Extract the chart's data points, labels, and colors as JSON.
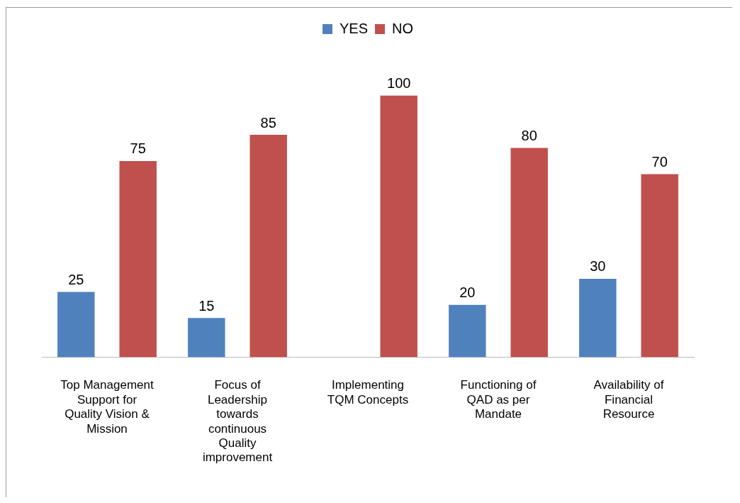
{
  "chart_data": {
    "type": "bar",
    "categories": [
      "Top Management Support for Quality Vision & Mission",
      "Focus of Leadership towards continuous Quality improvement",
      "Implementing TQM Concepts",
      "Functioning of QAD as per Mandate",
      "Availability of Financial Resource"
    ],
    "series": [
      {
        "name": "YES",
        "color": "#4f81bd",
        "values": [
          25,
          15,
          null,
          20,
          30
        ]
      },
      {
        "name": "NO",
        "color": "#c0504d",
        "values": [
          75,
          85,
          100,
          80,
          70
        ]
      }
    ],
    "data_labels": true,
    "legend": "top",
    "grid": false
  }
}
